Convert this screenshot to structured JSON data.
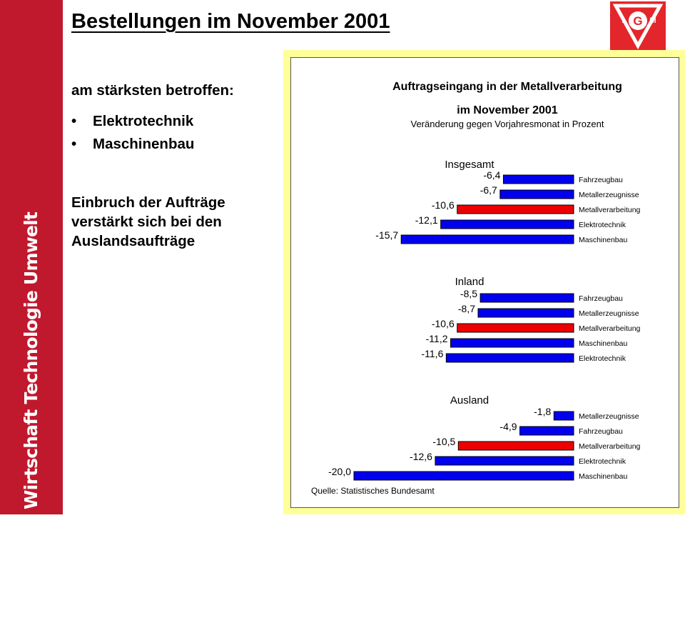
{
  "sidebar": {
    "text": "Wirtschaft Technologie Umwelt"
  },
  "slide": {
    "title": "Bestellungen im November 2001",
    "most_affected_label": "am stärksten betroffen:",
    "bullets": [
      "Elektrotechnik",
      "Maschinenbau"
    ],
    "note": "Einbruch der Aufträge verstärkt sich bei den Auslandsaufträge"
  },
  "logo": {
    "icon": "ig-metall-logo-icon",
    "letters": "IGM",
    "color": "#e3262b"
  },
  "colors": {
    "bar": "#0000ee",
    "highlight": "#ee0000",
    "sidebar": "#c0182d",
    "frame": "#ffff99"
  },
  "chart_data": {
    "type": "bar",
    "orientation": "horizontal",
    "title": "Auftragseingang in der Metallverarbeitung",
    "title_line2": "im November 2001",
    "subtitle": "Veränderung gegen Vorjahresmonat in Prozent",
    "source": "Quelle: Statistisches Bundesamt",
    "groups": [
      {
        "name": "Insgesamt",
        "bars": [
          {
            "label": "Fahrzeugbau",
            "value": -6.4,
            "value_label": "-6,4",
            "highlight": false
          },
          {
            "label": "Metallerzeugnisse",
            "value": -6.7,
            "value_label": "-6,7",
            "highlight": false
          },
          {
            "label": "Metallverarbeitung",
            "value": -10.6,
            "value_label": "-10,6",
            "highlight": true
          },
          {
            "label": "Elektrotechnik",
            "value": -12.1,
            "value_label": "-12,1",
            "highlight": false
          },
          {
            "label": "Maschinenbau",
            "value": -15.7,
            "value_label": "-15,7",
            "highlight": false
          }
        ]
      },
      {
        "name": "Inland",
        "bars": [
          {
            "label": "Fahrzeugbau",
            "value": -8.5,
            "value_label": "-8,5",
            "highlight": false
          },
          {
            "label": "Metallerzeugnisse",
            "value": -8.7,
            "value_label": "-8,7",
            "highlight": false
          },
          {
            "label": "Metallverarbeitung",
            "value": -10.6,
            "value_label": "-10,6",
            "highlight": true
          },
          {
            "label": "Maschinenbau",
            "value": -11.2,
            "value_label": "-11,2",
            "highlight": false
          },
          {
            "label": "Elektrotechnik",
            "value": -11.6,
            "value_label": "-11,6",
            "highlight": false
          }
        ]
      },
      {
        "name": "Ausland",
        "bars": [
          {
            "label": "Metallerzeugnisse",
            "value": -1.8,
            "value_label": "-1,8",
            "highlight": false
          },
          {
            "label": "Fahrzeugbau",
            "value": -4.9,
            "value_label": "-4,9",
            "highlight": false
          },
          {
            "label": "Metallverarbeitung",
            "value": -10.5,
            "value_label": "-10,5",
            "highlight": true
          },
          {
            "label": "Elektrotechnik",
            "value": -12.6,
            "value_label": "-12,6",
            "highlight": false
          },
          {
            "label": "Maschinenbau",
            "value": -20.0,
            "value_label": "-20,0",
            "highlight": false
          }
        ]
      }
    ]
  }
}
